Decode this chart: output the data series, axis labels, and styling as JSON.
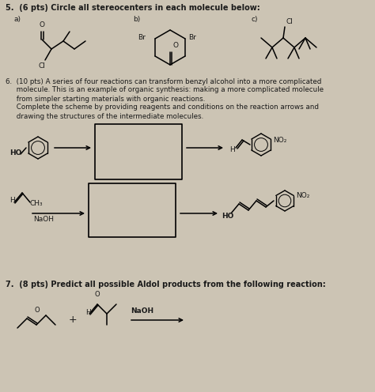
{
  "background_color": "#ccc4b4",
  "figsize": [
    4.74,
    4.96
  ],
  "dpi": 100,
  "text_color": "#1a1a1a",
  "q5_title": "5.  (6 pts) Circle all stereocenters in each molecule below:",
  "q6_line1": "6.  (10 pts) A series of four reactions can transform benzyl alcohol into a more complicated",
  "q6_line2": "     molecule. This is an example of organic synthesis: making a more complicated molecule",
  "q6_line3": "     from simpler starting materials with organic reactions.",
  "q6_line4": "     Complete the scheme by providing reagents and conditions on the reaction arrows and",
  "q6_line5": "     drawing the structures of the intermediate molecules.",
  "q7_title": "7.  (8 pts) Predict all possible Aldol products from the following reaction:",
  "lbl_a": "a)",
  "lbl_b": "b)",
  "lbl_c": "c)",
  "cl": "Cl",
  "br": "Br",
  "ho": "HO",
  "h": "H",
  "no2": "NO₂",
  "ch3": "CH₃",
  "naoh": "NaOH",
  "o": "O"
}
